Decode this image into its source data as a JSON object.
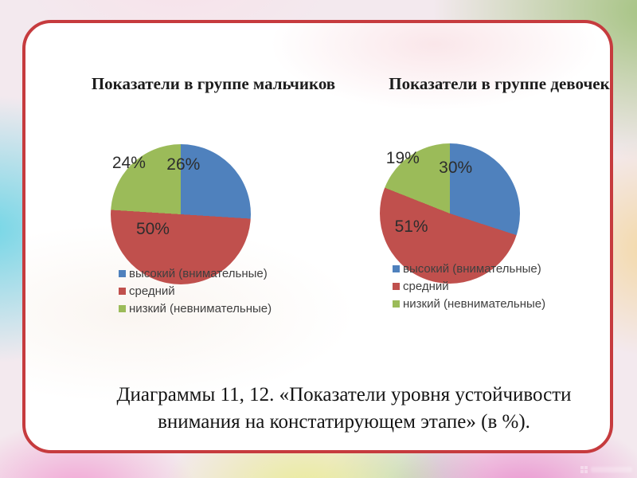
{
  "slide": {
    "caption": {
      "line1": "Диаграммы 11, 12. «Показатели уровня устойчивости",
      "line2": "внимания на констатирующем этапе» (в %)."
    }
  },
  "theme": {
    "card_border_red": "#c63b3e",
    "pie_blue": "#4f81bd",
    "pie_red": "#c0504d",
    "pie_green": "#9bbb59"
  },
  "watermark": {
    "icon": "grid-icon"
  },
  "chart_data": [
    {
      "type": "pie",
      "title": "Показатели в группе мальчиков",
      "categories": [
        "высокий (внимательные)",
        "средний",
        "низкий (невнимательные)"
      ],
      "values": [
        26,
        50,
        24
      ],
      "slice_labels": [
        "26%",
        "50%",
        "24%"
      ],
      "colors": [
        "#4f81bd",
        "#c0504d",
        "#9bbb59"
      ],
      "start_angle_deg": 0,
      "direction": "clockwise",
      "legend_position": "bottom-left"
    },
    {
      "type": "pie",
      "title": "Показатели в группе девочек",
      "categories": [
        "высокий (внимательные)",
        "средний",
        "низкий (невнимательные)"
      ],
      "values": [
        30,
        51,
        19
      ],
      "slice_labels": [
        "30%",
        "51%",
        "19%"
      ],
      "colors": [
        "#4f81bd",
        "#c0504d",
        "#9bbb59"
      ],
      "start_angle_deg": 0,
      "direction": "clockwise",
      "legend_position": "bottom-left"
    }
  ]
}
